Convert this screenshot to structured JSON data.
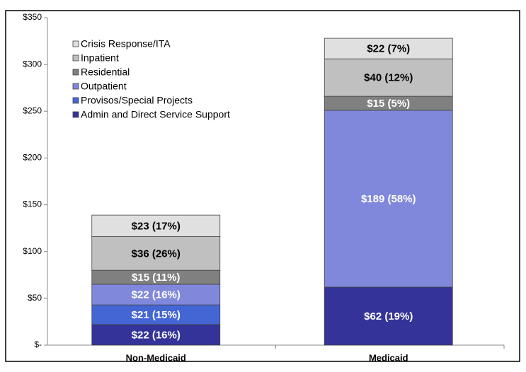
{
  "chart_data": {
    "type": "stacked_bar",
    "categories": [
      "Non-Medicaid",
      "Medicaid"
    ],
    "series": [
      {
        "name": "Admin and Direct Service Support",
        "color": "#333399",
        "values": [
          22,
          62
        ],
        "value_labels": [
          "$22 (16%)",
          "$62 (19%)"
        ]
      },
      {
        "name": "Provisos/Special Projects",
        "color": "#4466d4",
        "values": [
          21,
          null
        ],
        "value_labels": [
          "$21 (15%)",
          null
        ]
      },
      {
        "name": "Outpatient",
        "color": "#8088dc",
        "values": [
          22,
          189
        ],
        "value_labels": [
          "$22 (16%)",
          "$189 (58%)"
        ]
      },
      {
        "name": "Residential",
        "color": "#808080",
        "values": [
          15,
          15
        ],
        "value_labels": [
          "$15 (11%)",
          "$15 (5%)"
        ]
      },
      {
        "name": "Inpatient",
        "color": "#c0c0c0",
        "values": [
          36,
          40
        ],
        "value_labels": [
          "$36 (26%)",
          "$40 (12%)"
        ]
      },
      {
        "name": "Crisis Response/ITA",
        "color": "#e0e0e0",
        "values": [
          23,
          22
        ],
        "value_labels": [
          "$23 (17%)",
          "$22 (7%)"
        ]
      }
    ],
    "ylim": [
      0,
      350
    ],
    "yticks": [
      {
        "value": 0,
        "label": "$-"
      },
      {
        "value": 50,
        "label": "$50"
      },
      {
        "value": 100,
        "label": "$100"
      },
      {
        "value": 150,
        "label": "$150"
      },
      {
        "value": 200,
        "label": "$200"
      },
      {
        "value": 250,
        "label": "$250"
      },
      {
        "value": 300,
        "label": "$300"
      },
      {
        "value": 350,
        "label": "$350"
      }
    ],
    "grid": false,
    "legend": "upper-left"
  }
}
